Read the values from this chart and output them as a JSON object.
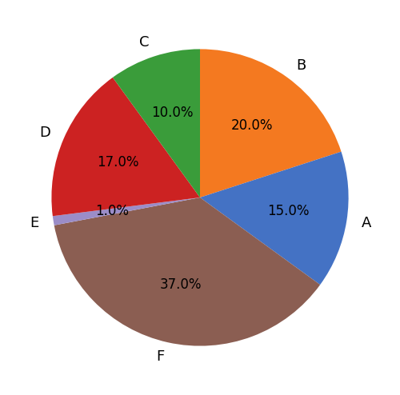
{
  "labels": [
    "B",
    "A",
    "F",
    "E",
    "D",
    "C"
  ],
  "sizes": [
    20.0,
    15.0,
    37.0,
    1.0,
    17.0,
    10.0
  ],
  "colors": [
    "#f47920",
    "#4472c4",
    "#8b5e52",
    "#9b8dc8",
    "#cc2222",
    "#3a9c3a"
  ],
  "startangle": 90,
  "counterclock": false,
  "label_fontsize": 13,
  "pct_fontsize": 12,
  "figsize": [
    5.0,
    4.94
  ],
  "dpi": 100,
  "background_color": "#ffffff"
}
